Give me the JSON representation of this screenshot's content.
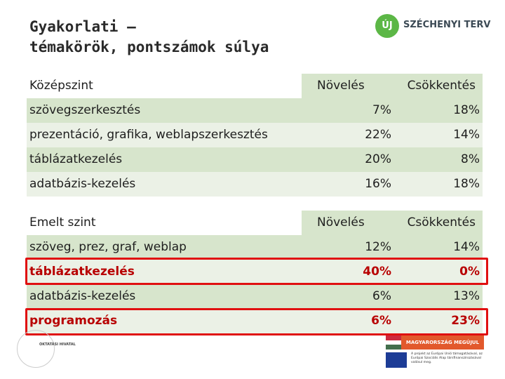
{
  "header": {
    "title": [
      "Gyakorlati –",
      "témakörök, pontszámok súlya"
    ],
    "logo": {
      "badge": "ÚJ",
      "text": "SZÉCHENYI TERV"
    }
  },
  "tables": [
    {
      "header": [
        "Középszint",
        "Növelés",
        "Csökkentés"
      ],
      "rows": [
        [
          "szövegszerkesztés",
          "7%",
          "18%"
        ],
        [
          "prezentáció, grafika, weblapszerkesztés",
          "22%",
          "14%"
        ],
        [
          "táblázatkezelés",
          "20%",
          "8%"
        ],
        [
          "adatbázis-kezelés",
          "16%",
          "18%"
        ]
      ]
    },
    {
      "header": [
        "Emelt szint",
        "Növelés",
        "Csökkentés"
      ],
      "rows": [
        [
          "szöveg, prez, graf, weblap",
          "12%",
          "14%"
        ],
        [
          "táblázatkezelés",
          "40%",
          "0%"
        ],
        [
          "adatbázis-kezelés",
          "6%",
          "13%"
        ],
        [
          "programozás",
          "6%",
          "23%"
        ]
      ]
    }
  ],
  "footer": {
    "left_logo": "OKTATÁSI HIVATAL",
    "banner": "MAGYARORSZÁG MEGÚJUL",
    "eu_text": "A projekt az Európai Unió támogatásával, az Európai Szociális Alap társfinanszírozásával valósul meg."
  }
}
